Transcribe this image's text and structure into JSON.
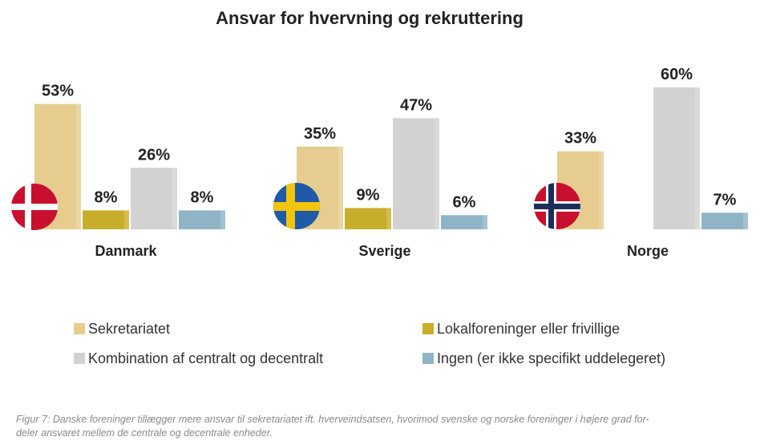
{
  "chart_data": {
    "type": "bar",
    "title": "Ansvar for hvervning og rekruttering",
    "categories": [
      "Danmark",
      "Sverige",
      "Norge"
    ],
    "series": [
      {
        "name": "Sekretariatet",
        "color": "#e6cd8f",
        "values": [
          53,
          35,
          33
        ],
        "labels": [
          "53%",
          "35%",
          "33%"
        ]
      },
      {
        "name": "Lokalforeninger eller frivillige",
        "color": "#c8ad2a",
        "values": [
          8,
          9,
          0
        ],
        "labels": [
          "8%",
          "9%",
          ""
        ]
      },
      {
        "name": "Kombination af centralt og decentralt",
        "color": "#d2d2d2",
        "values": [
          26,
          47,
          60
        ],
        "labels": [
          "26%",
          "47%",
          "60%"
        ]
      },
      {
        "name": "Ingen (er ikke specifikt uddelegeret)",
        "color": "#8fb4c6",
        "values": [
          8,
          6,
          7
        ],
        "labels": [
          "8%",
          "6%",
          "7%"
        ]
      }
    ],
    "flags": [
      "denmark-flag",
      "sweden-flag",
      "norway-flag"
    ],
    "legend_position": "bottom",
    "grid": false
  },
  "caption": {
    "line1": "Figur 7: Danske foreninger tillægger mere ansvar til sekretariatet ift. hverveindsatsen, hvorimod svenske og norske foreninger i højere grad for-",
    "line2": "deler ansvaret mellem de centrale og decentrale enheder."
  }
}
